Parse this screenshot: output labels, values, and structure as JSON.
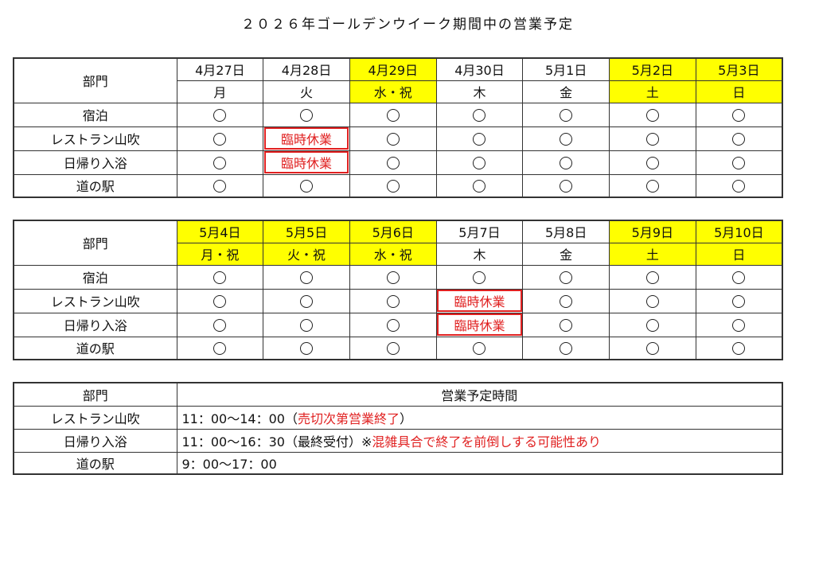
{
  "title": "２０２６年ゴールデンウイーク期間中の営業予定",
  "colors": {
    "holiday_highlight": "#ffff00",
    "closed_text": "#e02020"
  },
  "dept_header": "部門",
  "open_mark": "○",
  "weeks": [
    {
      "days": [
        {
          "date": "4月27日",
          "weekday": "月",
          "highlight": false
        },
        {
          "date": "4月28日",
          "weekday": "火",
          "highlight": false
        },
        {
          "date": "4月29日",
          "weekday": "水・祝",
          "highlight": true
        },
        {
          "date": "4月30日",
          "weekday": "木",
          "highlight": false
        },
        {
          "date": "5月1日",
          "weekday": "金",
          "highlight": false
        },
        {
          "date": "5月2日",
          "weekday": "土",
          "highlight": true
        },
        {
          "date": "5月3日",
          "weekday": "日",
          "highlight": true
        }
      ],
      "rows": [
        {
          "dept": "宿泊",
          "cells": [
            "○",
            "○",
            "○",
            "○",
            "○",
            "○",
            "○"
          ]
        },
        {
          "dept": "レストラン山吹",
          "cells": [
            "○",
            "臨時休業",
            "○",
            "○",
            "○",
            "○",
            "○"
          ]
        },
        {
          "dept": "日帰り入浴",
          "cells": [
            "○",
            "臨時休業",
            "○",
            "○",
            "○",
            "○",
            "○"
          ]
        },
        {
          "dept": "道の駅",
          "cells": [
            "○",
            "○",
            "○",
            "○",
            "○",
            "○",
            "○"
          ]
        }
      ]
    },
    {
      "days": [
        {
          "date": "5月4日",
          "weekday": "月・祝",
          "highlight": true
        },
        {
          "date": "5月5日",
          "weekday": "火・祝",
          "highlight": true
        },
        {
          "date": "5月6日",
          "weekday": "水・祝",
          "highlight": true
        },
        {
          "date": "5月7日",
          "weekday": "木",
          "highlight": false
        },
        {
          "date": "5月8日",
          "weekday": "金",
          "highlight": false
        },
        {
          "date": "5月9日",
          "weekday": "土",
          "highlight": true
        },
        {
          "date": "5月10日",
          "weekday": "日",
          "highlight": true
        }
      ],
      "rows": [
        {
          "dept": "宿泊",
          "cells": [
            "○",
            "○",
            "○",
            "○",
            "○",
            "○",
            "○"
          ]
        },
        {
          "dept": "レストラン山吹",
          "cells": [
            "○",
            "○",
            "○",
            "臨時休業",
            "○",
            "○",
            "○"
          ]
        },
        {
          "dept": "日帰り入浴",
          "cells": [
            "○",
            "○",
            "○",
            "臨時休業",
            "○",
            "○",
            "○"
          ]
        },
        {
          "dept": "道の駅",
          "cells": [
            "○",
            "○",
            "○",
            "○",
            "○",
            "○",
            "○"
          ]
        }
      ]
    }
  ],
  "hours": {
    "header": "営業予定時間",
    "rows": [
      {
        "dept": "レストラン山吹",
        "time": "11：00～14：00（",
        "note": "売切次第営業終了",
        "after": "）"
      },
      {
        "dept": "日帰り入浴",
        "time": "11：00～16：30（最終受付）※",
        "note": "混雑具合で終了を前倒しする可能性あり",
        "after": ""
      },
      {
        "dept": "道の駅",
        "time": "9：00～17：00",
        "note": "",
        "after": ""
      }
    ]
  }
}
